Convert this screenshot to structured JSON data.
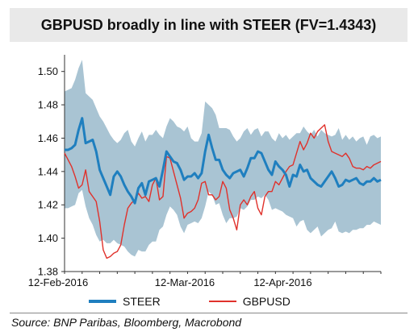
{
  "title": "GBPUSD broadly in line with STEER (FV=1.4343)",
  "source": "Source:  BNP Paribas, Bloomberg, Macrobond",
  "colors": {
    "steer": "#1f7fbf",
    "gbpusd": "#e0312b",
    "band": "#a9c4d3",
    "title_bg": "#e9e9e9"
  },
  "chart_data": {
    "type": "line",
    "title": "GBPUSD broadly in line with STEER (FV=1.4343)",
    "xlabel": "",
    "ylabel": "",
    "x_tick_labels": [
      "12-Feb-2016",
      "12-Mar-2016",
      "12-Apr-2016"
    ],
    "y_ticks": [
      "1.38",
      "1.40",
      "1.42",
      "1.44",
      "1.46",
      "1.48",
      "1.50"
    ],
    "ylim": [
      1.38,
      1.51
    ],
    "legend_position": "bottom",
    "grid": false,
    "x": [
      0,
      1,
      2,
      3,
      4,
      5,
      6,
      7,
      8,
      9,
      10,
      11,
      12,
      13,
      14,
      15,
      16,
      17,
      18,
      19,
      20,
      21,
      22,
      23,
      24,
      25,
      26,
      27,
      28,
      29,
      30,
      31,
      32,
      33,
      34,
      35,
      36,
      37,
      38,
      39,
      40,
      41,
      42,
      43,
      44,
      45,
      46,
      47,
      48,
      49,
      50,
      51,
      52,
      53,
      54,
      55,
      56,
      57,
      58,
      59,
      60,
      61,
      62,
      63,
      64,
      65,
      66,
      67,
      68,
      69,
      70,
      71,
      72,
      73,
      74,
      75,
      76,
      77,
      78,
      79,
      80,
      81,
      82,
      83,
      84,
      85,
      86,
      87,
      88,
      89,
      90
    ],
    "series": [
      {
        "name": "STEER",
        "values": [
          1.453,
          1.453,
          1.454,
          1.456,
          1.465,
          1.472,
          1.457,
          1.458,
          1.459,
          1.452,
          1.441,
          1.436,
          1.431,
          1.426,
          1.437,
          1.44,
          1.437,
          1.432,
          1.428,
          1.425,
          1.421,
          1.43,
          1.433,
          1.426,
          1.434,
          1.435,
          1.436,
          1.431,
          1.441,
          1.452,
          1.449,
          1.446,
          1.445,
          1.441,
          1.435,
          1.437,
          1.437,
          1.439,
          1.436,
          1.439,
          1.452,
          1.462,
          1.454,
          1.447,
          1.447,
          1.441,
          1.438,
          1.436,
          1.439,
          1.44,
          1.441,
          1.437,
          1.442,
          1.448,
          1.448,
          1.452,
          1.451,
          1.446,
          1.441,
          1.438,
          1.446,
          1.443,
          1.441,
          1.438,
          1.431,
          1.438,
          1.437,
          1.444,
          1.44,
          1.441,
          1.436,
          1.434,
          1.432,
          1.431,
          1.434,
          1.437,
          1.44,
          1.436,
          1.431,
          1.432,
          1.435,
          1.434,
          1.435,
          1.436,
          1.433,
          1.432,
          1.434,
          1.434,
          1.436,
          1.434,
          1.435
        ],
        "upper": [
          1.488,
          1.489,
          1.49,
          1.495,
          1.502,
          1.507,
          1.487,
          1.485,
          1.483,
          1.478,
          1.473,
          1.47,
          1.466,
          1.462,
          1.459,
          1.457,
          1.459,
          1.463,
          1.465,
          1.458,
          1.455,
          1.46,
          1.464,
          1.458,
          1.462,
          1.462,
          1.465,
          1.462,
          1.46,
          1.467,
          1.472,
          1.47,
          1.467,
          1.466,
          1.464,
          1.467,
          1.46,
          1.458,
          1.458,
          1.463,
          1.482,
          1.48,
          1.478,
          1.474,
          1.466,
          1.466,
          1.466,
          1.465,
          1.461,
          1.458,
          1.46,
          1.464,
          1.466,
          1.462,
          1.465,
          1.466,
          1.461,
          1.464,
          1.464,
          1.46,
          1.458,
          1.463,
          1.46,
          1.462,
          1.459,
          1.461,
          1.463,
          1.463,
          1.467,
          1.464,
          1.462,
          1.465,
          1.461,
          1.465,
          1.463,
          1.462,
          1.461,
          1.462,
          1.466,
          1.459,
          1.462,
          1.459,
          1.461,
          1.458,
          1.46,
          1.461,
          1.456,
          1.461,
          1.462,
          1.46,
          1.461
        ],
        "lower": [
          1.418,
          1.418,
          1.419,
          1.42,
          1.427,
          1.429,
          1.419,
          1.412,
          1.408,
          1.402,
          1.398,
          1.399,
          1.397,
          1.397,
          1.399,
          1.397,
          1.396,
          1.395,
          1.392,
          1.39,
          1.389,
          1.393,
          1.392,
          1.392,
          1.396,
          1.398,
          1.398,
          1.405,
          1.407,
          1.414,
          1.419,
          1.417,
          1.414,
          1.407,
          1.403,
          1.408,
          1.409,
          1.41,
          1.409,
          1.412,
          1.419,
          1.428,
          1.426,
          1.42,
          1.421,
          1.414,
          1.409,
          1.412,
          1.412,
          1.413,
          1.418,
          1.417,
          1.419,
          1.423,
          1.423,
          1.425,
          1.424,
          1.426,
          1.423,
          1.417,
          1.418,
          1.417,
          1.416,
          1.414,
          1.413,
          1.412,
          1.407,
          1.41,
          1.411,
          1.405,
          1.403,
          1.405,
          1.407,
          1.401,
          1.403,
          1.405,
          1.406,
          1.41,
          1.404,
          1.403,
          1.404,
          1.403,
          1.405,
          1.405,
          1.406,
          1.406,
          1.408,
          1.408,
          1.41,
          1.409,
          1.408
        ]
      },
      {
        "name": "GBPUSD",
        "values": [
          1.451,
          1.447,
          1.443,
          1.437,
          1.43,
          1.432,
          1.441,
          1.428,
          1.425,
          1.422,
          1.41,
          1.393,
          1.388,
          1.389,
          1.391,
          1.392,
          1.396,
          1.408,
          1.418,
          1.421,
          1.423,
          1.427,
          1.424,
          1.425,
          1.422,
          1.432,
          1.436,
          1.423,
          1.425,
          1.449,
          1.448,
          1.44,
          1.432,
          1.424,
          1.412,
          1.415,
          1.416,
          1.418,
          1.423,
          1.433,
          1.434,
          1.426,
          1.426,
          1.423,
          1.425,
          1.434,
          1.43,
          1.417,
          1.412,
          1.405,
          1.42,
          1.423,
          1.42,
          1.425,
          1.428,
          1.418,
          1.414,
          1.425,
          1.428,
          1.428,
          1.434,
          1.432,
          1.436,
          1.44,
          1.443,
          1.444,
          1.451,
          1.458,
          1.453,
          1.457,
          1.463,
          1.46,
          1.464,
          1.466,
          1.468,
          1.458,
          1.452,
          1.451,
          1.45,
          1.449,
          1.451,
          1.448,
          1.443,
          1.442,
          1.442,
          1.441,
          1.443,
          1.442,
          1.444,
          1.445,
          1.446
        ]
      }
    ]
  }
}
